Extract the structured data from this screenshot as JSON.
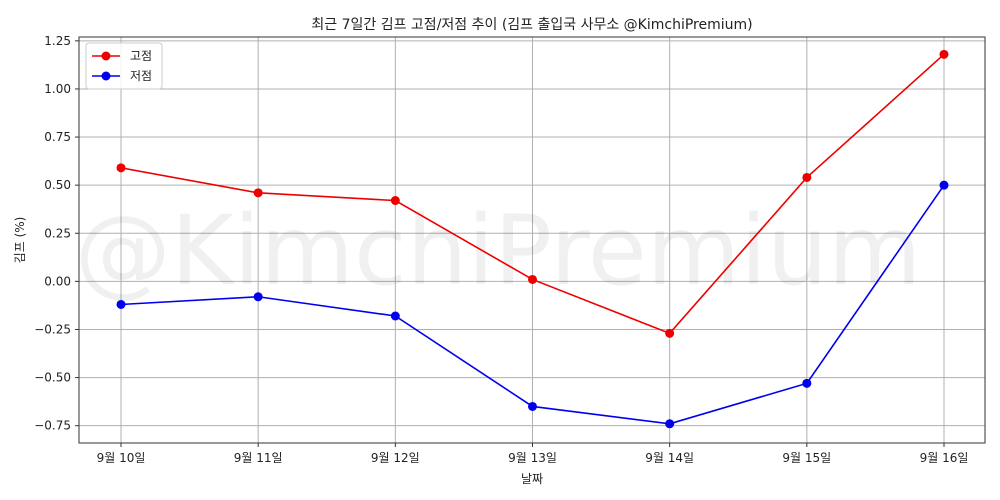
{
  "chart_data": {
    "type": "line",
    "title": "최근 7일간 김프 고점/저점 추이 (김프 출입국 사무소 @KimchiPremium)",
    "xlabel": "날짜",
    "ylabel": "김프 (%)",
    "categories": [
      "9월 10일",
      "9월 11일",
      "9월 12일",
      "9월 13일",
      "9월 14일",
      "9월 15일",
      "9월 16일"
    ],
    "series": [
      {
        "name": "고점",
        "color": "#ee0000",
        "values": [
          0.59,
          0.46,
          0.42,
          0.01,
          -0.27,
          0.54,
          1.18
        ]
      },
      {
        "name": "저점",
        "color": "#0000ee",
        "values": [
          -0.12,
          -0.08,
          -0.18,
          -0.65,
          -0.74,
          -0.53,
          0.5
        ]
      }
    ],
    "ylim": [
      -0.84,
      1.27
    ],
    "yticks": [
      1.25,
      1.0,
      0.75,
      0.5,
      0.25,
      0.0,
      -0.25,
      -0.5,
      -0.75
    ],
    "ytick_labels": [
      "1.25",
      "1.00",
      "0.75",
      "0.50",
      "0.25",
      "0.00",
      "−0.25",
      "−0.50",
      "−0.75"
    ],
    "grid": true,
    "legend_position": "top-left",
    "watermark": "@KimchiPremium"
  }
}
